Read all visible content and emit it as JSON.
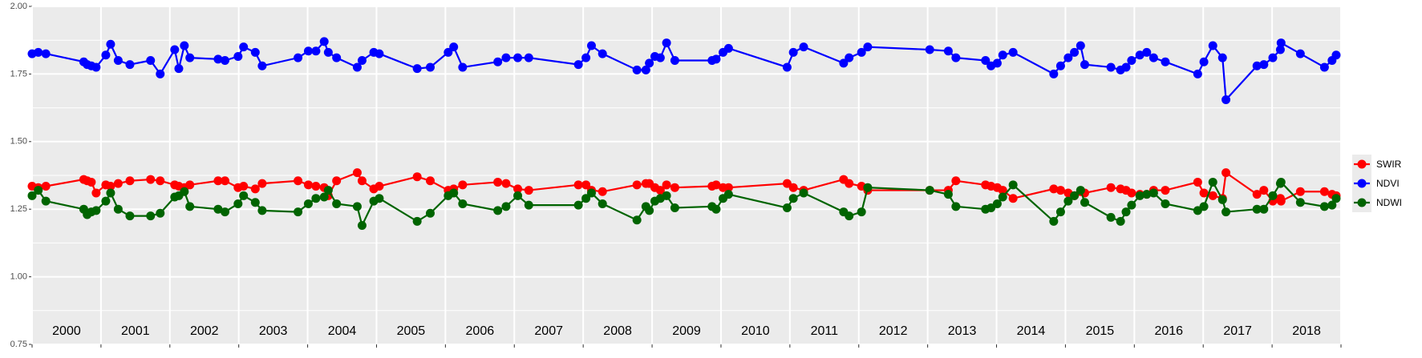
{
  "chart_data": {
    "type": "line",
    "x": [
      2000.0,
      2000.09,
      2000.2,
      2000.75,
      2000.8,
      2000.86,
      2000.93,
      2001.07,
      2001.14,
      2001.25,
      2001.42,
      2001.72,
      2001.86,
      2002.07,
      2002.13,
      2002.21,
      2002.29,
      2002.7,
      2002.8,
      2002.99,
      2003.07,
      2003.24,
      2003.34,
      2003.86,
      2004.01,
      2004.12,
      2004.24,
      2004.3,
      2004.42,
      2004.72,
      2004.79,
      2004.96,
      2005.04,
      2005.59,
      2005.78,
      2006.04,
      2006.12,
      2006.25,
      2006.76,
      2006.88,
      2007.05,
      2007.21,
      2007.93,
      2008.04,
      2008.12,
      2008.28,
      2008.78,
      2008.91,
      2008.96,
      2009.04,
      2009.12,
      2009.21,
      2009.33,
      2009.87,
      2009.93,
      2010.03,
      2010.11,
      2010.96,
      2011.05,
      2011.2,
      2011.78,
      2011.86,
      2012.04,
      2012.13,
      2013.03,
      2013.3,
      2013.41,
      2013.84,
      2013.92,
      2014.01,
      2014.09,
      2014.24,
      2014.83,
      2014.93,
      2015.04,
      2015.13,
      2015.22,
      2015.28,
      2015.66,
      2015.8,
      2015.88,
      2015.96,
      2016.08,
      2016.18,
      2016.28,
      2016.45,
      2016.92,
      2017.01,
      2017.14,
      2017.28,
      2017.33,
      2017.78,
      2017.88,
      2018.01,
      2018.12,
      2018.13,
      2018.41,
      2018.76,
      2018.87,
      2018.93
    ],
    "series": [
      {
        "name": "SWIR",
        "color": "#ff0000",
        "values": [
          1.335,
          1.33,
          1.335,
          1.36,
          1.355,
          1.35,
          1.31,
          1.34,
          1.335,
          1.345,
          1.355,
          1.36,
          1.355,
          1.34,
          1.335,
          1.33,
          1.34,
          1.355,
          1.355,
          1.33,
          1.335,
          1.325,
          1.345,
          1.355,
          1.34,
          1.335,
          1.33,
          1.3,
          1.355,
          1.385,
          1.355,
          1.325,
          1.335,
          1.37,
          1.355,
          1.32,
          1.325,
          1.34,
          1.35,
          1.345,
          1.325,
          1.32,
          1.34,
          1.34,
          1.32,
          1.315,
          1.34,
          1.345,
          1.345,
          1.33,
          1.32,
          1.34,
          1.33,
          1.335,
          1.34,
          1.33,
          1.33,
          1.345,
          1.33,
          1.32,
          1.36,
          1.345,
          1.335,
          1.32,
          1.32,
          1.32,
          1.355,
          1.34,
          1.335,
          1.33,
          1.32,
          1.29,
          1.325,
          1.32,
          1.31,
          1.3,
          1.315,
          1.31,
          1.33,
          1.325,
          1.32,
          1.31,
          1.305,
          1.305,
          1.32,
          1.32,
          1.35,
          1.31,
          1.3,
          1.29,
          1.385,
          1.305,
          1.32,
          1.28,
          1.29,
          1.28,
          1.315,
          1.315,
          1.305,
          1.3
        ]
      },
      {
        "name": "NDVI",
        "color": "#0000ff",
        "values": [
          1.825,
          1.83,
          1.825,
          1.795,
          1.785,
          1.78,
          1.775,
          1.82,
          1.86,
          1.8,
          1.785,
          1.8,
          1.75,
          1.84,
          1.77,
          1.855,
          1.81,
          1.805,
          1.8,
          1.815,
          1.85,
          1.83,
          1.78,
          1.81,
          1.835,
          1.835,
          1.87,
          1.83,
          1.81,
          1.775,
          1.8,
          1.83,
          1.825,
          1.77,
          1.775,
          1.83,
          1.85,
          1.775,
          1.795,
          1.81,
          1.81,
          1.81,
          1.785,
          1.81,
          1.855,
          1.825,
          1.765,
          1.765,
          1.79,
          1.815,
          1.81,
          1.865,
          1.8,
          1.8,
          1.805,
          1.83,
          1.845,
          1.775,
          1.83,
          1.85,
          1.79,
          1.81,
          1.83,
          1.85,
          1.84,
          1.835,
          1.81,
          1.8,
          1.78,
          1.79,
          1.82,
          1.83,
          1.75,
          1.78,
          1.81,
          1.83,
          1.855,
          1.785,
          1.775,
          1.765,
          1.775,
          1.8,
          1.82,
          1.83,
          1.81,
          1.795,
          1.75,
          1.795,
          1.855,
          1.81,
          1.655,
          1.78,
          1.785,
          1.81,
          1.84,
          1.865,
          1.825,
          1.775,
          1.8,
          1.82
        ]
      },
      {
        "name": "NDWI",
        "color": "#006400",
        "values": [
          1.3,
          1.32,
          1.28,
          1.25,
          1.23,
          1.24,
          1.245,
          1.28,
          1.31,
          1.25,
          1.225,
          1.225,
          1.235,
          1.295,
          1.3,
          1.315,
          1.26,
          1.25,
          1.24,
          1.27,
          1.3,
          1.275,
          1.245,
          1.24,
          1.27,
          1.29,
          1.295,
          1.32,
          1.27,
          1.26,
          1.19,
          1.28,
          1.29,
          1.205,
          1.235,
          1.3,
          1.31,
          1.27,
          1.245,
          1.26,
          1.3,
          1.265,
          1.265,
          1.29,
          1.31,
          1.27,
          1.21,
          1.26,
          1.245,
          1.28,
          1.29,
          1.3,
          1.255,
          1.26,
          1.25,
          1.29,
          1.305,
          1.255,
          1.29,
          1.31,
          1.24,
          1.225,
          1.24,
          1.33,
          1.32,
          1.305,
          1.26,
          1.25,
          1.255,
          1.27,
          1.295,
          1.34,
          1.205,
          1.24,
          1.28,
          1.3,
          1.32,
          1.275,
          1.22,
          1.205,
          1.24,
          1.265,
          1.3,
          1.305,
          1.31,
          1.27,
          1.245,
          1.26,
          1.35,
          1.285,
          1.24,
          1.25,
          1.25,
          1.3,
          1.345,
          1.35,
          1.275,
          1.26,
          1.265,
          1.29
        ]
      }
    ],
    "xlim": [
      2000,
      2019
    ],
    "xticks": [
      2000,
      2001,
      2002,
      2003,
      2004,
      2005,
      2006,
      2007,
      2008,
      2009,
      2010,
      2011,
      2012,
      2013,
      2014,
      2015,
      2016,
      2017,
      2018,
      2019
    ],
    "year_labels": [
      "2000",
      "2001",
      "2002",
      "2003",
      "2004",
      "2005",
      "2006",
      "2007",
      "2008",
      "2009",
      "2010",
      "2011",
      "2012",
      "2013",
      "2014",
      "2015",
      "2016",
      "2017",
      "2018"
    ],
    "ylim": [
      0.75,
      2.0
    ],
    "yticks": [
      0.75,
      {
        "value": 1.0,
        "label": "1.00"
      },
      1.25,
      {
        "value": 1.5,
        "label": "1.50"
      },
      1.75,
      {
        "value": 2.0,
        "label": "2.00"
      }
    ],
    "yminorticks": [
      0.875,
      1.125,
      1.375,
      1.625,
      1.875
    ],
    "grid": true,
    "legend": "right"
  }
}
